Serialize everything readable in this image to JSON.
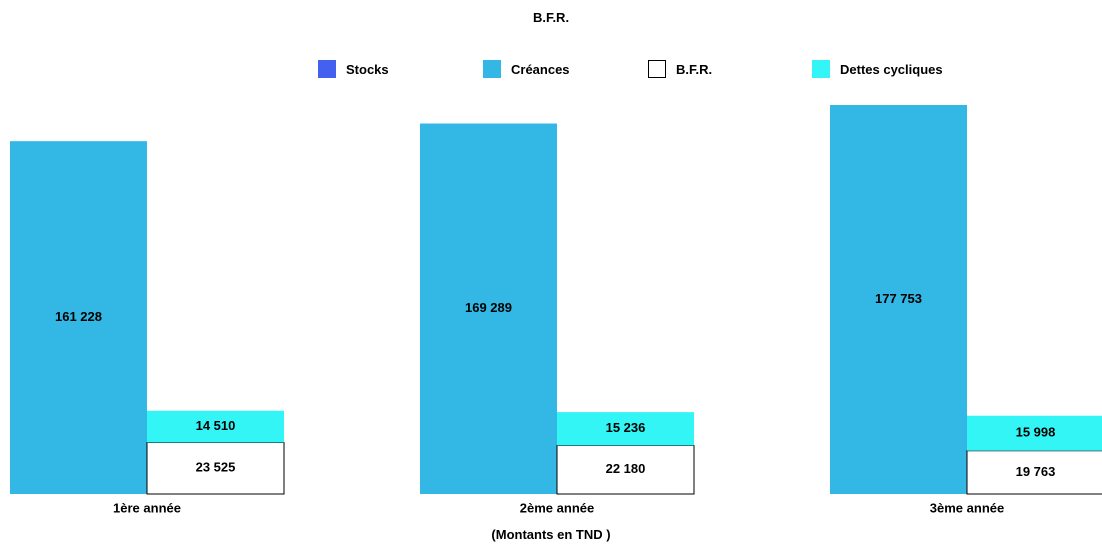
{
  "chart_data": {
    "type": "bar",
    "title": "B.F.R.",
    "unit_label": "(Montants en TND )",
    "categories": [
      "1ère année",
      "2ème année",
      "3ème année"
    ],
    "legend": [
      {
        "name": "Stocks",
        "color": "#4361ee"
      },
      {
        "name": "Créances",
        "color": "#33b8e6"
      },
      {
        "name": "B.F.R.",
        "color": "#ffffff"
      },
      {
        "name": "Dettes cycliques",
        "color": "#33f5f5"
      }
    ],
    "stocks": [
      0,
      0,
      0
    ],
    "creances": [
      161228,
      169289,
      177753
    ],
    "bfr": [
      23525,
      22180,
      19763
    ],
    "dettes_cycliques": [
      14510,
      15236,
      15998
    ],
    "value_labels": {
      "creances": [
        "161 228",
        "169 289",
        "177 753"
      ],
      "bfr": [
        "23 525",
        "22 180",
        "19 763"
      ],
      "dettes_cycliques": [
        "14 510",
        "15 236",
        "15 998"
      ]
    },
    "colors": {
      "creances": "#33b8e6",
      "bfr": "#ffffff",
      "dettes_cycliques": "#33f5f5",
      "bfr_border": "#000000"
    },
    "ylim": [
      0,
      177753
    ],
    "grid": false,
    "legend_position": "top"
  }
}
